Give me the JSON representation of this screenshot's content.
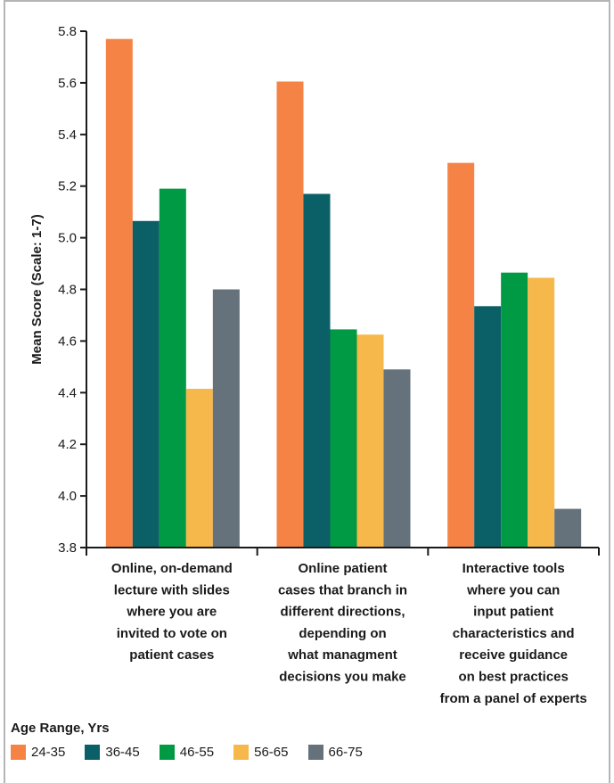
{
  "chart_data": {
    "type": "bar",
    "ylabel": "Mean Score (Scale: 1-7)",
    "ylim": [
      3.8,
      5.8
    ],
    "yticks": [
      "3.8",
      "4.0",
      "4.2",
      "4.4",
      "4.6",
      "4.8",
      "5.0",
      "5.2",
      "5.4",
      "5.6",
      "5.8"
    ],
    "categories": [
      "Online, on-demand lecture with slides where you are invited to vote on patient cases",
      "Online patient cases that branch in different directions, depending on what managment decisions you make",
      "Interactive tools where you can input patient characteristics and receive guidance on best practices from a panel of experts"
    ],
    "category_lines": [
      [
        "Online, on-demand",
        "lecture with slides",
        "where you are",
        "invited to vote on",
        "patient cases"
      ],
      [
        "Online patient",
        "cases that branch in",
        "different directions,",
        "depending on",
        "what managment",
        "decisions you make"
      ],
      [
        "Interactive tools",
        "where you can",
        "input patient",
        "characteristics and",
        "receive guidance",
        "on best practices",
        "from a panel of experts"
      ]
    ],
    "legend_title": "Age Range, Yrs",
    "series": [
      {
        "name": "24-35",
        "color": "#f58345",
        "values": [
          5.77,
          5.605,
          5.29
        ]
      },
      {
        "name": "36-45",
        "color": "#0b5f66",
        "values": [
          5.065,
          5.17,
          4.735
        ]
      },
      {
        "name": "46-55",
        "color": "#009a44",
        "values": [
          5.19,
          4.645,
          4.865
        ]
      },
      {
        "name": "56-65",
        "color": "#f7b84b",
        "values": [
          4.415,
          4.625,
          4.845
        ]
      },
      {
        "name": "66-75",
        "color": "#66727b",
        "values": [
          4.8,
          4.49,
          3.95
        ]
      }
    ]
  }
}
